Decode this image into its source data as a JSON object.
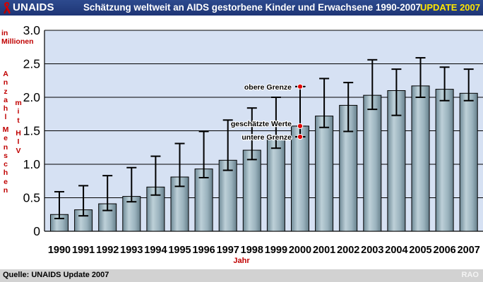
{
  "header": {
    "logo": "UNAIDS",
    "title": "Schätzung weltweit an AIDS gestorbene Kinder und Erwachsene 1990-2007",
    "badge": "UPDATE 2007"
  },
  "ylabel": {
    "unit_line1": "in",
    "unit_line2": "Millionen",
    "word1": "Anzahl",
    "word2": "Menschen",
    "word3": "mit",
    "word4": "HIV"
  },
  "footer": {
    "source": "Quelle: UNAIDS Update 2007",
    "mark": "RAO"
  },
  "colors": {
    "plot_background": "#d6e1f3",
    "bar": "#9ab2bd",
    "accent_red": "#c00000",
    "header_blue": "#22397a",
    "badge_yellow": "#ffe600"
  },
  "chart_data": {
    "type": "bar",
    "title": "Schätzung weltweit an AIDS gestorbene Kinder und Erwachsene 1990-2007",
    "xlabel": "Jahr",
    "ylabel": "Anzahl Menschen mit HIV in Millionen",
    "ylim": [
      0,
      3.0
    ],
    "yticks": [
      "0",
      "0.5",
      "1.0",
      "1.5",
      "2.0",
      "2.5",
      "3.0"
    ],
    "grid": true,
    "categories": [
      "1990",
      "1991",
      "1992",
      "1993",
      "1994",
      "1995",
      "1996",
      "1997",
      "1998",
      "1999",
      "2000",
      "2001",
      "2002",
      "2003",
      "2004",
      "2005",
      "2006",
      "2007"
    ],
    "values": [
      0.25,
      0.32,
      0.41,
      0.52,
      0.66,
      0.81,
      0.93,
      1.06,
      1.21,
      1.39,
      1.57,
      1.72,
      1.88,
      2.03,
      2.1,
      2.17,
      2.12,
      2.06
    ],
    "lower": [
      0.19,
      0.23,
      0.31,
      0.44,
      0.54,
      0.67,
      0.8,
      0.91,
      1.07,
      1.24,
      1.41,
      1.55,
      1.49,
      1.82,
      1.73,
      2.0,
      1.95,
      1.95
    ],
    "upper": [
      0.59,
      0.68,
      0.83,
      0.95,
      1.12,
      1.31,
      1.49,
      1.66,
      1.84,
      2.0,
      2.16,
      2.28,
      2.22,
      2.56,
      2.42,
      2.59,
      2.45,
      2.42
    ],
    "legend": {
      "year_index": 10,
      "upper_label": "obere Grenze",
      "value_label": "geschätzte Werte",
      "lower_label": "untere Grenze"
    }
  }
}
